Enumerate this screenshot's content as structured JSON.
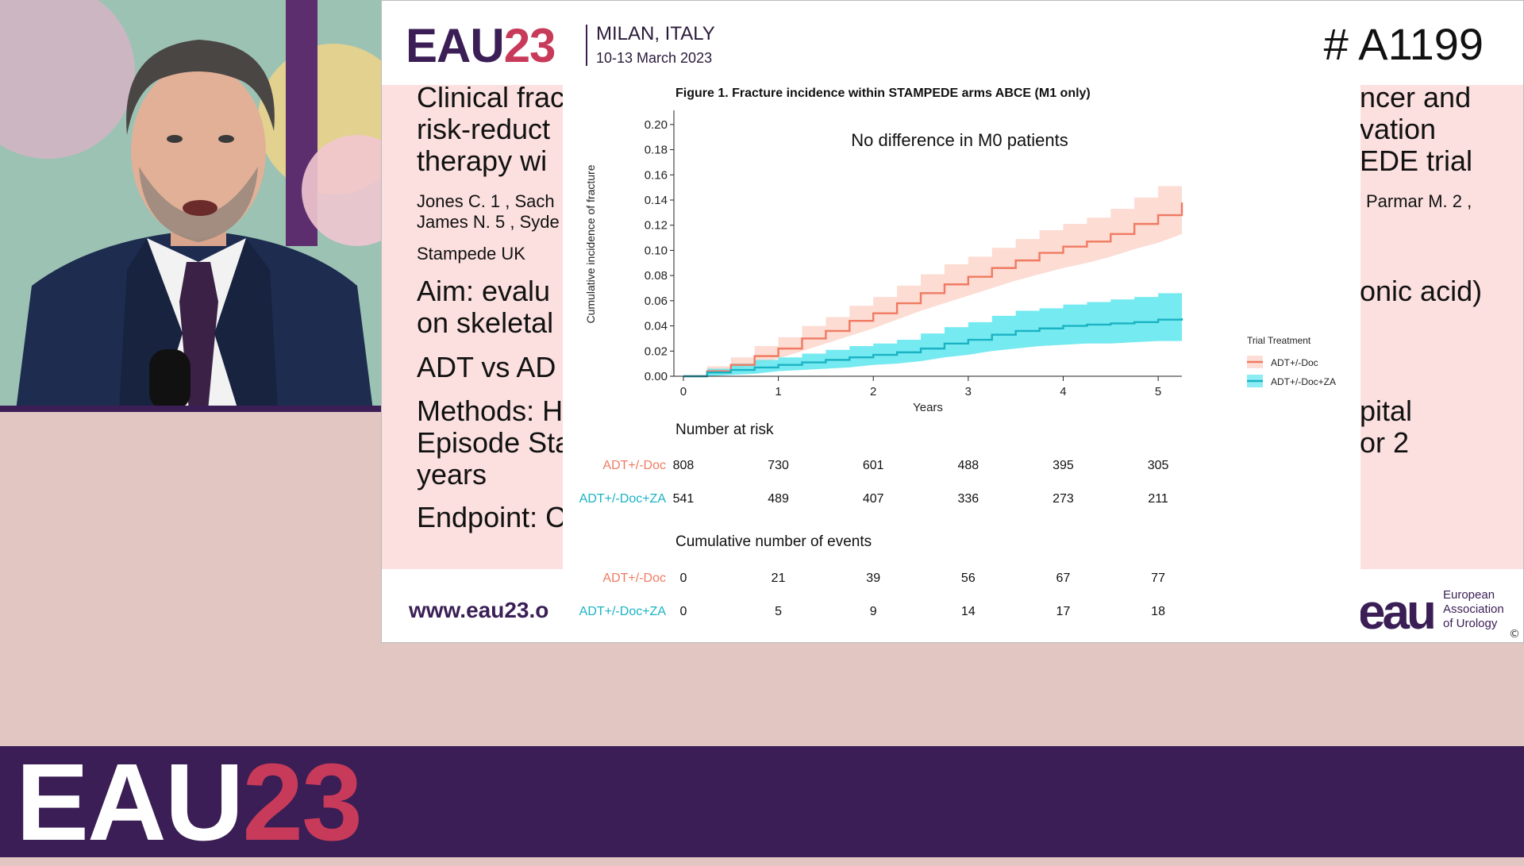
{
  "conference": {
    "logo_left": "EAU",
    "logo_right": "23",
    "location": "MILAN, ITALY",
    "dates": "10-13 March 2023",
    "abstract_id": "# A1199",
    "url": "www.eau23.o",
    "org_mark": "eau",
    "org_name_1": "European",
    "org_name_2": "Association",
    "org_name_3": "of Urology",
    "copyright": "©"
  },
  "slide_left": {
    "title_1": "Clinical frac",
    "title_2": "risk-reduct",
    "title_3": "therapy wi",
    "authors_1": "Jones C. 1 , Sach",
    "authors_2": "James N. 5 , Syde",
    "affiliation": "Stampede UK",
    "aim_1": "Aim: evalu",
    "aim_2": "on skeletal",
    "comparison": "ADT vs AD",
    "methods_1": "Methods: H",
    "methods_2": "Episode Sta",
    "methods_3": "years",
    "endpoint": "Endpoint: C"
  },
  "slide_right": {
    "title_1": "ncer and",
    "title_2": "vation",
    "title_3": "EDE trial",
    "authors": "Parmar M. 2 ,",
    "aim": "onic acid)",
    "methods_1": "pital",
    "methods_2": "or 2"
  },
  "chart_data": {
    "type": "line",
    "title": "Figure 1. Fracture incidence within STAMPEDE arms ABCE (M1 only)",
    "annotation": "No difference in M0 patients",
    "xlabel": "Years",
    "ylabel": "Cumulative incidence of fracture",
    "xlim": [
      -0.1,
      5.25
    ],
    "ylim": [
      0,
      0.21
    ],
    "x_ticks": [
      "0",
      "1",
      "2",
      "3",
      "4",
      "5"
    ],
    "y_ticks": [
      "0.00",
      "0.02",
      "0.04",
      "0.06",
      "0.08",
      "0.10",
      "0.12",
      "0.14",
      "0.16",
      "0.18",
      "0.20"
    ],
    "legend_title": "Trial Treatment",
    "legend_position": "right",
    "series": [
      {
        "name": "ADT+/-Doc",
        "color": "#f07a62",
        "band_color": "#fbd0c4",
        "x": [
          0,
          0.25,
          0.5,
          0.75,
          1,
          1.25,
          1.5,
          1.75,
          2,
          2.25,
          2.5,
          2.75,
          3,
          3.25,
          3.5,
          3.75,
          4,
          4.25,
          4.5,
          4.75,
          5,
          5.25
        ],
        "y": [
          0,
          0.004,
          0.009,
          0.016,
          0.022,
          0.03,
          0.036,
          0.044,
          0.05,
          0.058,
          0.066,
          0.073,
          0.079,
          0.086,
          0.092,
          0.098,
          0.103,
          0.107,
          0.113,
          0.121,
          0.128,
          0.138
        ],
        "lower": [
          0,
          0.001,
          0.004,
          0.009,
          0.014,
          0.02,
          0.026,
          0.032,
          0.038,
          0.045,
          0.052,
          0.058,
          0.064,
          0.07,
          0.076,
          0.081,
          0.086,
          0.09,
          0.095,
          0.101,
          0.106,
          0.113
        ],
        "upper": [
          0,
          0.008,
          0.015,
          0.024,
          0.031,
          0.04,
          0.047,
          0.056,
          0.063,
          0.072,
          0.081,
          0.089,
          0.095,
          0.102,
          0.109,
          0.116,
          0.121,
          0.126,
          0.133,
          0.142,
          0.151,
          0.165
        ]
      },
      {
        "name": "ADT+/-Doc+ZA",
        "color": "#1ab3c4",
        "band_color": "#5ee6ee",
        "x": [
          0,
          0.25,
          0.5,
          0.75,
          1,
          1.25,
          1.5,
          1.75,
          2,
          2.25,
          2.5,
          2.75,
          3,
          3.25,
          3.5,
          3.75,
          4,
          4.25,
          4.5,
          4.75,
          5,
          5.25
        ],
        "y": [
          0,
          0.003,
          0.005,
          0.007,
          0.009,
          0.011,
          0.013,
          0.015,
          0.017,
          0.019,
          0.022,
          0.026,
          0.029,
          0.033,
          0.036,
          0.038,
          0.04,
          0.041,
          0.042,
          0.043,
          0.045,
          0.046
        ],
        "lower": [
          0,
          0.0,
          0.001,
          0.002,
          0.004,
          0.005,
          0.006,
          0.007,
          0.009,
          0.01,
          0.012,
          0.015,
          0.017,
          0.02,
          0.022,
          0.024,
          0.025,
          0.026,
          0.026,
          0.027,
          0.028,
          0.028
        ],
        "upper": [
          0,
          0.006,
          0.01,
          0.013,
          0.015,
          0.018,
          0.021,
          0.024,
          0.026,
          0.029,
          0.034,
          0.039,
          0.043,
          0.048,
          0.052,
          0.054,
          0.057,
          0.059,
          0.061,
          0.063,
          0.066,
          0.067
        ]
      }
    ]
  },
  "risk_table": {
    "heading": "Number at risk",
    "rows": [
      {
        "label": "ADT+/-Doc",
        "color": "#f07a62",
        "values": [
          "808",
          "730",
          "601",
          "488",
          "395",
          "305"
        ]
      },
      {
        "label": "ADT+/-Doc+ZA",
        "color": "#1ab3c4",
        "values": [
          "541",
          "489",
          "407",
          "336",
          "273",
          "211"
        ]
      }
    ]
  },
  "events_table": {
    "heading": "Cumulative number of events",
    "rows": [
      {
        "label": "ADT+/-Doc",
        "color": "#f07a62",
        "values": [
          "0",
          "21",
          "39",
          "56",
          "67",
          "77"
        ]
      },
      {
        "label": "ADT+/-Doc+ZA",
        "color": "#1ab3c4",
        "values": [
          "0",
          "5",
          "9",
          "14",
          "17",
          "18"
        ]
      }
    ]
  },
  "banner": {
    "logo_left": "EAU",
    "logo_right": "23"
  },
  "colors": {
    "brand_purple": "#3a1e55",
    "brand_red": "#c83a5a",
    "slide_pink": "#fbe0df"
  }
}
